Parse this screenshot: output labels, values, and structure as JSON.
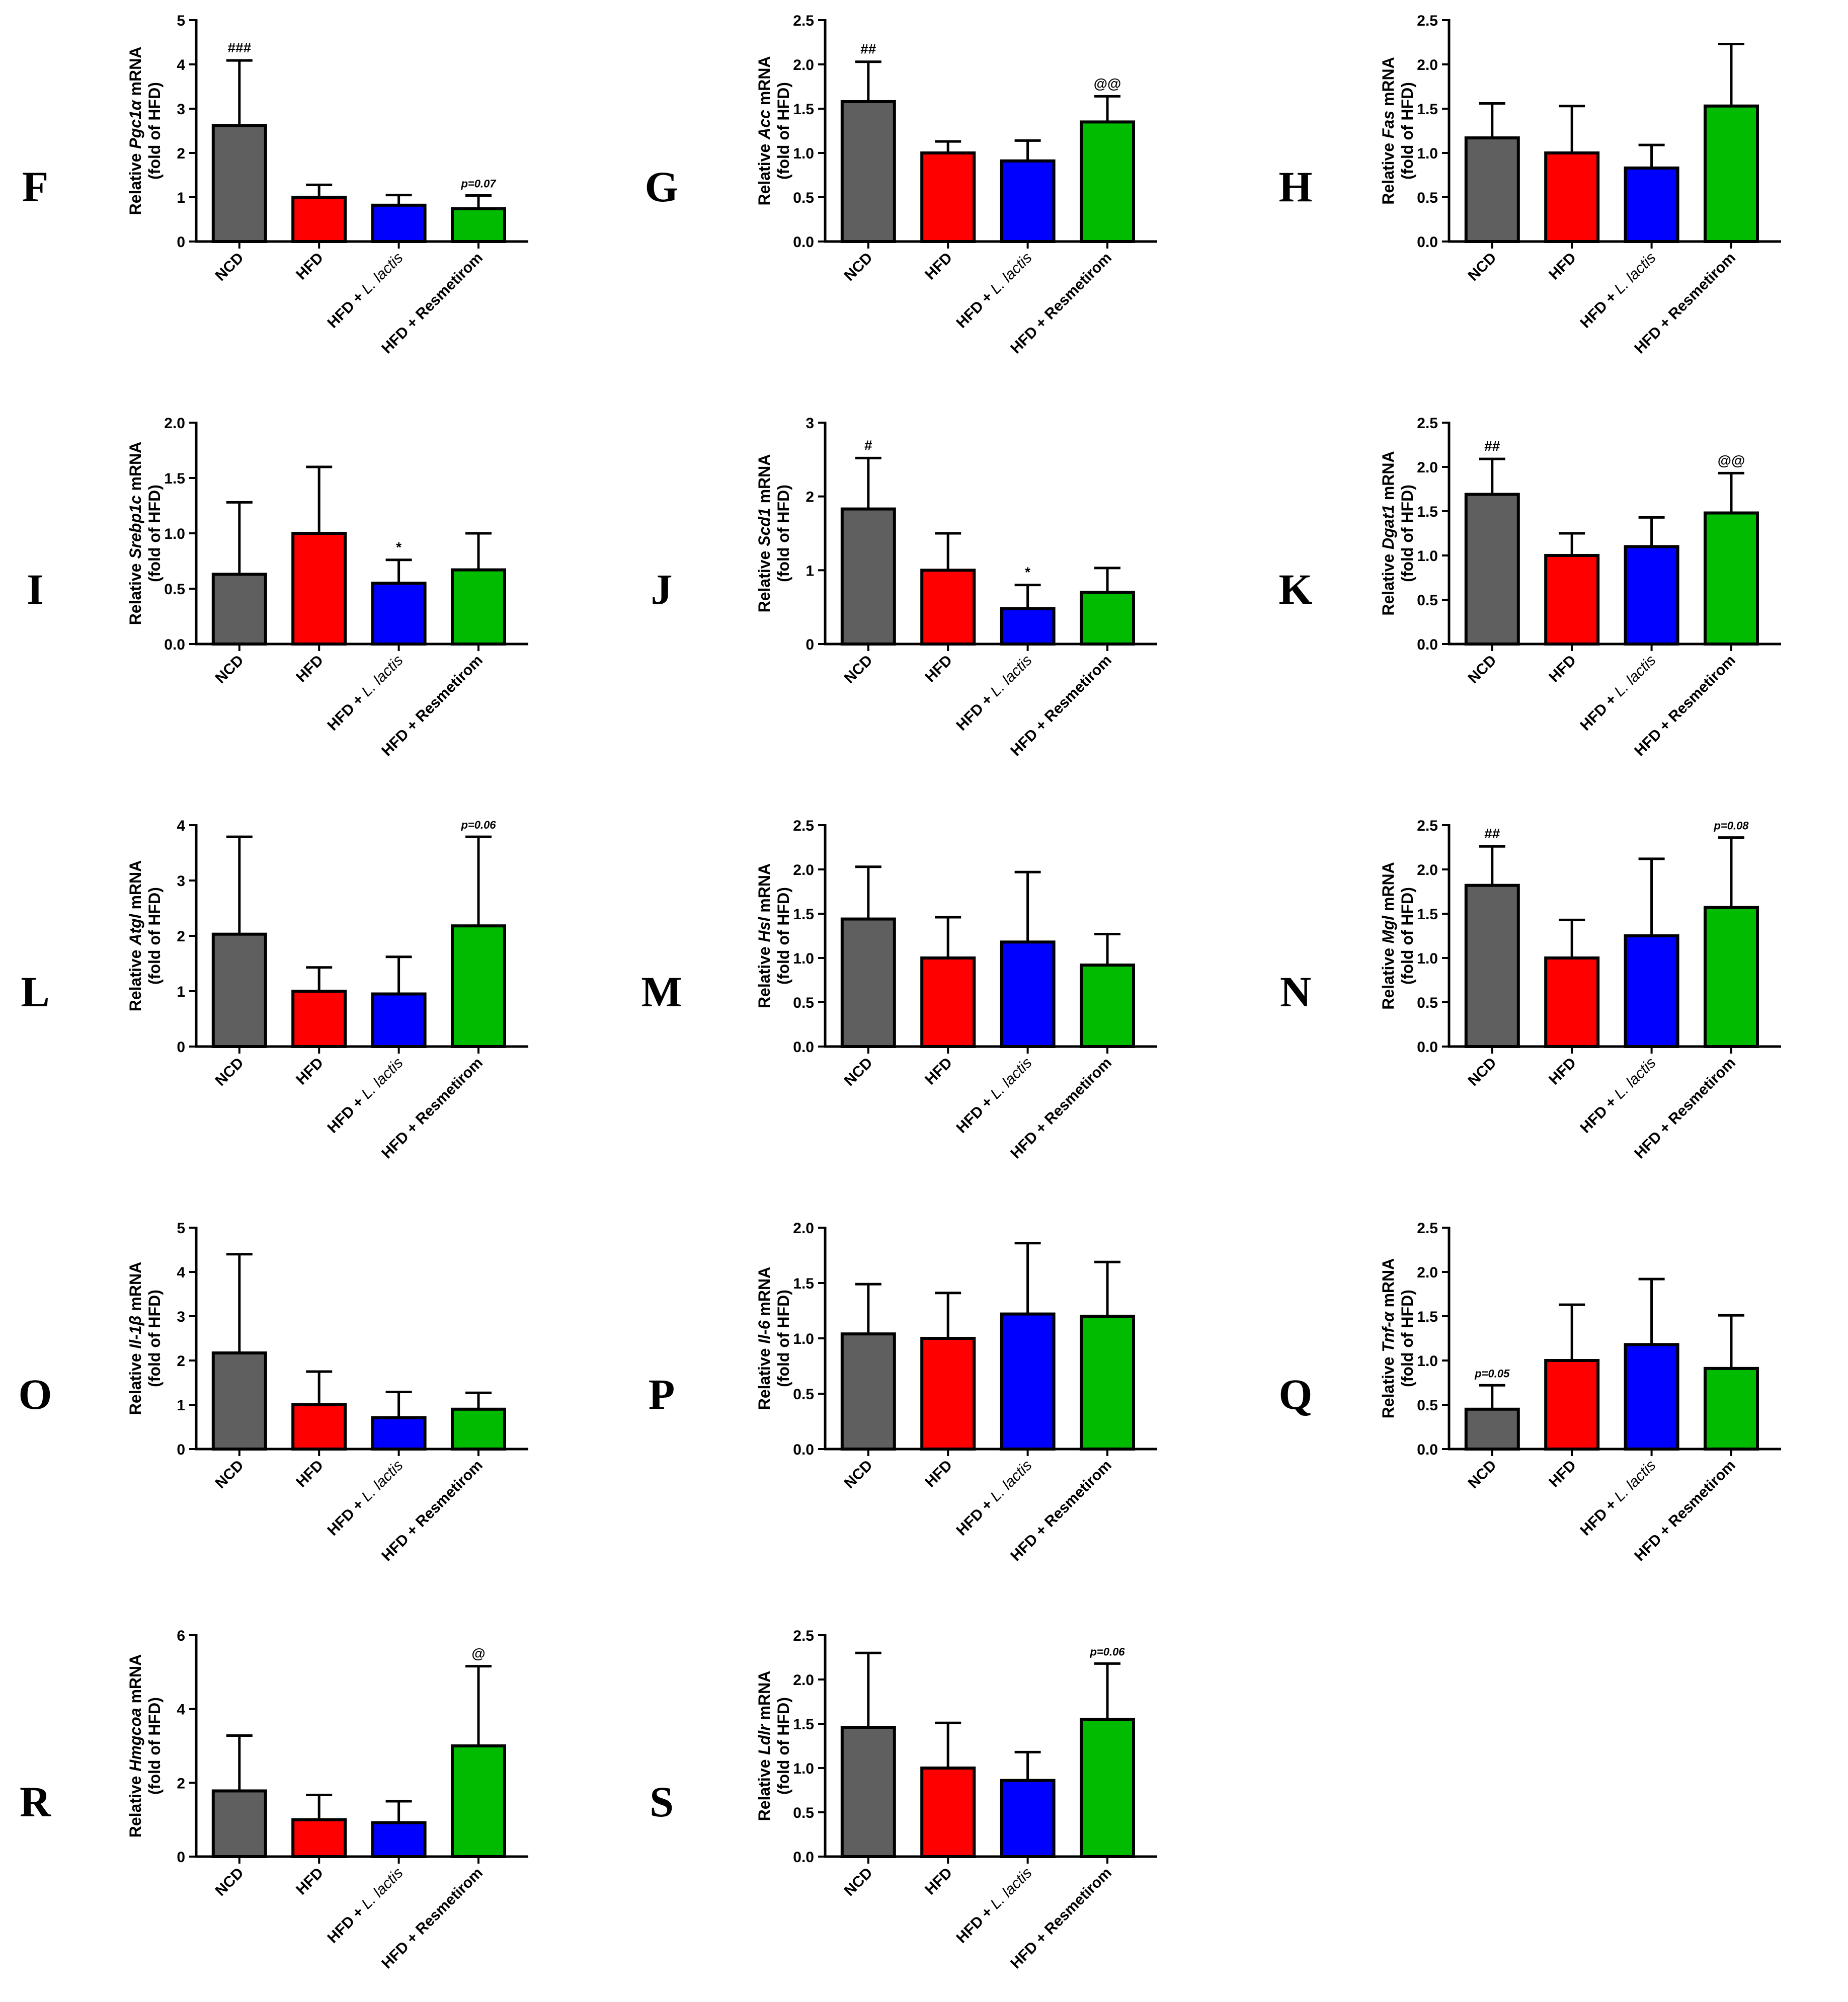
{
  "colors": {
    "NCD": "#5f5f5f",
    "HFD": "#ff0000",
    "HFD + L. lactis": "#0000ff",
    "HFD + Resmetirom": "#00bb00",
    "axis": "#000000"
  },
  "chart_data": [
    {
      "panel": "F",
      "type": "bar",
      "gene": "Pgc1α",
      "ylabel_prefix": "Relative",
      "ylabel_suffix": " mRNA",
      "ylabel_line2": "(fold of HFD)",
      "categories": [
        "NCD",
        "HFD",
        "HFD + L. lactis",
        "HFD + Resmetirom"
      ],
      "values": [
        2.62,
        1.0,
        0.82,
        0.74
      ],
      "errors": [
        1.47,
        0.28,
        0.23,
        0.3
      ],
      "ylim": [
        0,
        5
      ],
      "yticks": [
        "0",
        "1",
        "2",
        "3",
        "4",
        "5"
      ],
      "annotations": [
        "###",
        "",
        "",
        "p=0.07"
      ]
    },
    {
      "panel": "G",
      "type": "bar",
      "gene": "Acc",
      "ylabel_prefix": "Relative",
      "ylabel_suffix": " mRNA",
      "ylabel_line2": "(fold of HFD)",
      "categories": [
        "NCD",
        "HFD",
        "HFD + L. lactis",
        "HFD + Resmetirom"
      ],
      "values": [
        1.58,
        1.0,
        0.91,
        1.35
      ],
      "errors": [
        0.45,
        0.13,
        0.23,
        0.29
      ],
      "ylim": [
        0,
        2.5
      ],
      "yticks": [
        "0.0",
        "0.5",
        "1.0",
        "1.5",
        "2.0",
        "2.5"
      ],
      "annotations": [
        "##",
        "",
        "",
        "@@"
      ]
    },
    {
      "panel": "H",
      "type": "bar",
      "gene": "Fas",
      "ylabel_prefix": "Relative",
      "ylabel_suffix": " mRNA",
      "ylabel_line2": "(fold of HFD)",
      "categories": [
        "NCD",
        "HFD",
        "HFD + L. lactis",
        "HFD + Resmetirom"
      ],
      "values": [
        1.17,
        1.0,
        0.83,
        1.53
      ],
      "errors": [
        0.39,
        0.53,
        0.26,
        0.7
      ],
      "ylim": [
        0,
        2.5
      ],
      "yticks": [
        "0.0",
        "0.5",
        "1.0",
        "1.5",
        "2.0",
        "2.5"
      ],
      "annotations": [
        "",
        "",
        "",
        ""
      ]
    },
    {
      "panel": "I",
      "type": "bar",
      "gene": "Srebp1c",
      "ylabel_prefix": "Relative",
      "ylabel_suffix": " mRNA",
      "ylabel_line2": "(fold of HFD)",
      "categories": [
        "NCD",
        "HFD",
        "HFD + L. lactis",
        "HFD + Resmetirom"
      ],
      "values": [
        0.63,
        1.0,
        0.55,
        0.67
      ],
      "errors": [
        0.65,
        0.6,
        0.21,
        0.33
      ],
      "ylim": [
        0,
        2
      ],
      "yticks": [
        "0.0",
        "0.5",
        "1.0",
        "1.5",
        "2.0"
      ],
      "annotations": [
        "",
        "",
        "*",
        ""
      ]
    },
    {
      "panel": "J",
      "type": "bar",
      "gene": "Scd1",
      "ylabel_prefix": "Relative",
      "ylabel_suffix": " mRNA",
      "ylabel_line2": "(fold of HFD)",
      "categories": [
        "NCD",
        "HFD",
        "HFD + L. lactis",
        "HFD + Resmetirom"
      ],
      "values": [
        1.83,
        1.0,
        0.48,
        0.7
      ],
      "errors": [
        0.69,
        0.5,
        0.32,
        0.33
      ],
      "ylim": [
        0,
        3
      ],
      "yticks": [
        "0",
        "1",
        "2",
        "3"
      ],
      "annotations": [
        "#",
        "",
        "*",
        ""
      ]
    },
    {
      "panel": "K",
      "type": "bar",
      "gene": "Dgat1",
      "ylabel_prefix": "Relative",
      "ylabel_suffix": " mRNA",
      "ylabel_line2": "(fold of HFD)",
      "categories": [
        "NCD",
        "HFD",
        "HFD + L. lactis",
        "HFD + Resmetirom"
      ],
      "values": [
        1.69,
        1.0,
        1.1,
        1.48
      ],
      "errors": [
        0.4,
        0.25,
        0.33,
        0.45
      ],
      "ylim": [
        0,
        2.5
      ],
      "yticks": [
        "0.0",
        "0.5",
        "1.0",
        "1.5",
        "2.0",
        "2.5"
      ],
      "annotations": [
        "##",
        "",
        "",
        "@@"
      ]
    },
    {
      "panel": "L",
      "type": "bar",
      "gene": "Atgl",
      "ylabel_prefix": "Relative",
      "ylabel_suffix": " mRNA",
      "ylabel_line2": "(fold of HFD)",
      "categories": [
        "NCD",
        "HFD",
        "HFD + L. lactis",
        "HFD + Resmetirom"
      ],
      "values": [
        2.03,
        1.0,
        0.95,
        2.18
      ],
      "errors": [
        1.76,
        0.43,
        0.67,
        1.61
      ],
      "ylim": [
        0,
        4
      ],
      "yticks": [
        "0",
        "1",
        "2",
        "3",
        "4"
      ],
      "annotations": [
        "",
        "",
        "",
        "p=0.06"
      ]
    },
    {
      "panel": "M",
      "type": "bar",
      "gene": "Hsl",
      "ylabel_prefix": "Relative",
      "ylabel_suffix": " mRNA",
      "ylabel_line2": "(fold of HFD)",
      "categories": [
        "NCD",
        "HFD",
        "HFD + L. lactis",
        "HFD + Resmetirom"
      ],
      "values": [
        1.44,
        1.0,
        1.18,
        0.92
      ],
      "errors": [
        0.59,
        0.46,
        0.79,
        0.35
      ],
      "ylim": [
        0,
        2.5
      ],
      "yticks": [
        "0.0",
        "0.5",
        "1.0",
        "1.5",
        "2.0",
        "2.5"
      ],
      "annotations": [
        "",
        "",
        "",
        ""
      ]
    },
    {
      "panel": "N",
      "type": "bar",
      "gene": "Mgl",
      "ylabel_prefix": "Relative",
      "ylabel_suffix": " mRNA",
      "ylabel_line2": "(fold of HFD)",
      "categories": [
        "NCD",
        "HFD",
        "HFD + L. lactis",
        "HFD + Resmetirom"
      ],
      "values": [
        1.82,
        1.0,
        1.25,
        1.57
      ],
      "errors": [
        0.44,
        0.43,
        0.87,
        0.79
      ],
      "ylim": [
        0,
        2.5
      ],
      "yticks": [
        "0.0",
        "0.5",
        "1.0",
        "1.5",
        "2.0",
        "2.5"
      ],
      "annotations": [
        "##",
        "",
        "",
        "p=0.08"
      ]
    },
    {
      "panel": "O",
      "type": "bar",
      "gene": "Il-1β",
      "ylabel_prefix": "Relative",
      "ylabel_suffix": " mRNA",
      "ylabel_line2": "(fold of HFD)",
      "categories": [
        "NCD",
        "HFD",
        "HFD + L. lactis",
        "HFD + Resmetirom"
      ],
      "values": [
        2.17,
        1.0,
        0.71,
        0.9
      ],
      "errors": [
        2.23,
        0.75,
        0.58,
        0.37
      ],
      "ylim": [
        0,
        5
      ],
      "yticks": [
        "0",
        "1",
        "2",
        "3",
        "4",
        "5"
      ],
      "annotations": [
        "",
        "",
        "",
        ""
      ]
    },
    {
      "panel": "P",
      "type": "bar",
      "gene": "Il-6",
      "ylabel_prefix": "Relative",
      "ylabel_suffix": " mRNA",
      "ylabel_line2": "(fold of HFD)",
      "categories": [
        "NCD",
        "HFD",
        "HFD + L. lactis",
        "HFD + Resmetirom"
      ],
      "values": [
        1.04,
        1.0,
        1.22,
        1.2
      ],
      "errors": [
        0.45,
        0.41,
        0.64,
        0.49
      ],
      "ylim": [
        0,
        2
      ],
      "yticks": [
        "0.0",
        "0.5",
        "1.0",
        "1.5",
        "2.0"
      ],
      "annotations": [
        "",
        "",
        "",
        ""
      ]
    },
    {
      "panel": "Q",
      "type": "bar",
      "gene": "Tnf-α",
      "ylabel_prefix": "Relative",
      "ylabel_suffix": " mRNA",
      "ylabel_line2": "(fold of HFD)",
      "categories": [
        "NCD",
        "HFD",
        "HFD + L. lactis",
        "HFD + Resmetirom"
      ],
      "values": [
        0.45,
        1.0,
        1.18,
        0.91
      ],
      "errors": [
        0.27,
        0.63,
        0.74,
        0.6
      ],
      "ylim": [
        0,
        2.5
      ],
      "yticks": [
        "0.0",
        "0.5",
        "1.0",
        "1.5",
        "2.0",
        "2.5"
      ],
      "annotations": [
        "p=0.05",
        "",
        "",
        ""
      ]
    },
    {
      "panel": "R",
      "type": "bar",
      "gene": "Hmgcoa",
      "ylabel_prefix": "Relative",
      "ylabel_suffix": " mRNA",
      "ylabel_line2": "(fold of HFD)",
      "categories": [
        "NCD",
        "HFD",
        "HFD + L. lactis",
        "HFD + Resmetirom"
      ],
      "values": [
        1.78,
        1.0,
        0.92,
        3.0
      ],
      "errors": [
        1.5,
        0.67,
        0.58,
        2.16
      ],
      "ylim": [
        0,
        6
      ],
      "yticks": [
        "0",
        "2",
        "4",
        "6"
      ],
      "annotations": [
        "",
        "",
        "",
        "@"
      ]
    },
    {
      "panel": "S",
      "type": "bar",
      "gene": "Ldlr",
      "ylabel_prefix": "Relative",
      "ylabel_suffix": " mRNA",
      "ylabel_line2": "(fold of HFD)",
      "categories": [
        "NCD",
        "HFD",
        "HFD + L. lactis",
        "HFD + Resmetirom"
      ],
      "values": [
        1.46,
        1.0,
        0.86,
        1.55
      ],
      "errors": [
        0.84,
        0.51,
        0.32,
        0.63
      ],
      "ylim": [
        0,
        2.5
      ],
      "yticks": [
        "0.0",
        "0.5",
        "1.0",
        "1.5",
        "2.0",
        "2.5"
      ],
      "annotations": [
        "",
        "",
        "",
        "p=0.06"
      ]
    }
  ]
}
